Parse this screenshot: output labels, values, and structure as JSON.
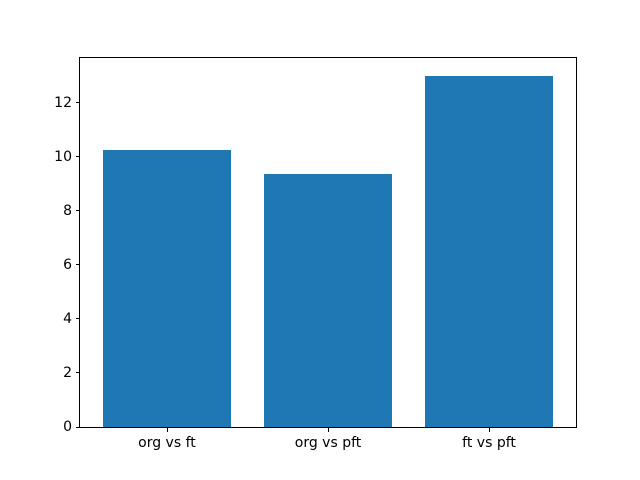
{
  "chart_data": {
    "type": "bar",
    "categories": [
      "org vs ft",
      "org vs pft",
      "ft vs pft"
    ],
    "values": [
      10.25,
      9.35,
      13.0
    ],
    "title": "",
    "xlabel": "",
    "ylabel": "",
    "ylim": [
      0,
      13.65
    ],
    "xlim": [
      -0.54,
      2.54
    ],
    "yticks": [
      0,
      2,
      4,
      6,
      8,
      10,
      12
    ],
    "bar_width_fraction": 0.8,
    "bar_color": "#1f77b4",
    "grid": false,
    "legend": false
  },
  "colors": {
    "background": "#ffffff",
    "spine": "#000000",
    "tick_label": "#000000",
    "bar": "#1f77b4"
  }
}
